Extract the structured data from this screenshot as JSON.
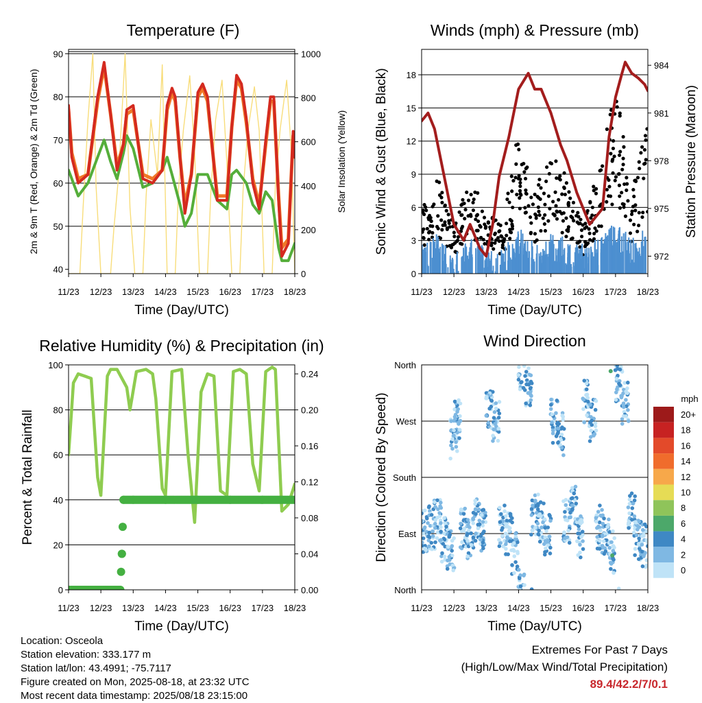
{
  "chart_data": [
    {
      "type": "line",
      "title": "Temperature (F)",
      "xlabel": "Time (Day/UTC)",
      "ylabel": "2m & 9m T (Red, Orange) & 2m Td (Green)",
      "y2label": "Solar Insolation (Yellow)",
      "x_ticks": [
        "11/23",
        "12/23",
        "13/23",
        "14/23",
        "15/23",
        "16/23",
        "17/23",
        "18/23"
      ],
      "xlim": [
        0,
        7
      ],
      "ylim": [
        39,
        91
      ],
      "y_ticks": [
        40,
        50,
        60,
        70,
        80,
        90
      ],
      "y2lim": [
        0,
        1020
      ],
      "y2_ticks": [
        0,
        200,
        400,
        600,
        800,
        1000
      ],
      "grid": true,
      "series": [
        {
          "name": "2m T",
          "color": "#d42a1f",
          "axis": "left",
          "x": [
            0,
            0.1,
            0.3,
            0.6,
            0.9,
            1.1,
            1.3,
            1.5,
            1.7,
            1.8,
            2.0,
            2.3,
            2.6,
            2.9,
            3.05,
            3.2,
            3.3,
            3.45,
            3.6,
            3.8,
            4.0,
            4.15,
            4.3,
            4.6,
            4.9,
            5.05,
            5.2,
            5.35,
            5.5,
            5.7,
            5.9,
            6.1,
            6.25,
            6.35,
            6.5,
            6.6,
            6.8,
            6.95,
            7.0
          ],
          "y": [
            78,
            66,
            60,
            62,
            80,
            88,
            76,
            63,
            69,
            77,
            78,
            61,
            60,
            63,
            78,
            82,
            80,
            66,
            53,
            62,
            81,
            83,
            80,
            56,
            56,
            73,
            85,
            83,
            75,
            60,
            54,
            70,
            80,
            80,
            56,
            43,
            46,
            72,
            66
          ]
        },
        {
          "name": "9m T",
          "color": "#f07828",
          "axis": "left",
          "x": [
            0,
            0.1,
            0.3,
            0.6,
            0.9,
            1.1,
            1.3,
            1.5,
            1.7,
            1.8,
            2.0,
            2.3,
            2.6,
            2.9,
            3.05,
            3.2,
            3.3,
            3.45,
            3.6,
            3.8,
            4.0,
            4.15,
            4.3,
            4.6,
            4.9,
            5.05,
            5.2,
            5.35,
            5.5,
            5.7,
            5.9,
            6.1,
            6.25,
            6.35,
            6.5,
            6.6,
            6.8,
            6.95,
            7.0
          ],
          "y": [
            77,
            67,
            61,
            62,
            79,
            87,
            76,
            64,
            69,
            76,
            77,
            62,
            61,
            63,
            77,
            81,
            79,
            66,
            55,
            62,
            80,
            82,
            79,
            57,
            57,
            73,
            84,
            82,
            74,
            61,
            55,
            69,
            79,
            79,
            57,
            45,
            47,
            71,
            66
          ]
        },
        {
          "name": "2m Td",
          "color": "#55ae3a",
          "axis": "left",
          "x": [
            0,
            0.3,
            0.6,
            0.9,
            1.1,
            1.3,
            1.5,
            1.7,
            1.8,
            2.0,
            2.3,
            2.6,
            2.9,
            3.05,
            3.2,
            3.45,
            3.6,
            3.8,
            4.0,
            4.3,
            4.6,
            4.9,
            5.05,
            5.2,
            5.5,
            5.7,
            5.9,
            6.1,
            6.3,
            6.5,
            6.6,
            6.8,
            7.0
          ],
          "y": [
            63,
            57,
            60,
            66,
            70,
            65,
            61,
            67,
            71,
            68,
            59,
            60,
            63,
            66,
            62,
            55,
            50,
            53,
            62,
            62,
            56,
            54,
            62,
            63,
            60,
            55,
            53,
            58,
            56,
            45,
            42,
            42,
            46
          ]
        },
        {
          "name": "Solar Insolation",
          "color": "#f8dd7a",
          "axis": "right",
          "x": [
            0,
            0.35,
            0.45,
            0.6,
            0.75,
            0.85,
            1.0,
            1.3,
            1.4,
            1.55,
            1.75,
            1.9,
            2.05,
            2.3,
            2.4,
            2.55,
            2.75,
            2.9,
            3.05,
            3.3,
            3.4,
            3.55,
            3.75,
            3.9,
            4.05,
            4.3,
            4.4,
            4.55,
            4.75,
            4.9,
            5.05,
            5.3,
            5.4,
            5.55,
            5.75,
            5.9,
            6.05,
            6.3,
            6.4,
            6.55,
            6.75,
            6.9,
            7.0
          ],
          "y": [
            0,
            0,
            300,
            700,
            1000,
            400,
            0,
            0,
            200,
            450,
            1000,
            300,
            0,
            0,
            350,
            700,
            450,
            950,
            0,
            0,
            380,
            650,
            900,
            550,
            0,
            0,
            360,
            700,
            880,
            500,
            0,
            0,
            380,
            650,
            850,
            650,
            0,
            0,
            400,
            660,
            880,
            540,
            0
          ]
        }
      ]
    },
    {
      "type": "line",
      "title": "Winds (mph) & Pressure (mb)",
      "xlabel": "Time (Day/UTC)",
      "ylabel": "Sonic Wind & Gust (Blue, Black)",
      "y2label": "Station Pressure (Maroon)",
      "x_ticks": [
        "11/23",
        "12/23",
        "13/23",
        "14/23",
        "15/23",
        "16/23",
        "17/23",
        "18/23"
      ],
      "xlim": [
        0,
        7
      ],
      "ylim": [
        0,
        20.3
      ],
      "y_ticks": [
        0,
        3,
        6,
        9,
        12,
        15,
        18
      ],
      "y2lim": [
        970.9,
        985
      ],
      "y2_ticks": [
        972,
        975,
        978,
        981,
        984
      ],
      "grid": true,
      "series": [
        {
          "name": "Sonic Wind",
          "color": "#4c8fd0",
          "axis": "left",
          "x": [
            0,
            0.5,
            1.0,
            1.5,
            2.0,
            2.5,
            3.0,
            3.5,
            4.0,
            4.5,
            5.0,
            5.5,
            6.0,
            6.5,
            7.0
          ],
          "y": [
            1.5,
            2.5,
            0.5,
            2.5,
            1.0,
            1.0,
            3.0,
            1.5,
            2.5,
            2.0,
            1.5,
            2.0,
            3.5,
            2.0,
            3.0
          ]
        },
        {
          "name": "Gust",
          "color": "#000000",
          "axis": "left",
          "x": [
            0,
            0.5,
            1.0,
            1.5,
            2.0,
            2.5,
            3.0,
            3.5,
            4.0,
            4.5,
            5.0,
            5.5,
            6.0,
            6.5,
            7.0
          ],
          "y": [
            4,
            6,
            3,
            6,
            4,
            3,
            9,
            5,
            8,
            6,
            3,
            7,
            12,
            5,
            10
          ]
        },
        {
          "name": "Station Pressure",
          "color": "#a31d1d",
          "axis": "right",
          "x": [
            0,
            0.2,
            0.4,
            0.7,
            1.0,
            1.3,
            1.5,
            1.8,
            2.0,
            2.2,
            2.4,
            2.7,
            3.0,
            3.3,
            3.5,
            3.7,
            3.8,
            4.0,
            4.3,
            4.5,
            4.8,
            5.0,
            5.2,
            5.4,
            5.6,
            5.8,
            6.0,
            6.2,
            6.3,
            6.5,
            6.7,
            6.9,
            7.0
          ],
          "y": [
            980.5,
            981,
            980,
            977,
            974,
            973,
            974,
            972.5,
            972,
            974,
            977,
            979.5,
            982.5,
            983.5,
            982.5,
            982.5,
            982,
            981,
            979,
            978,
            976,
            975,
            974,
            974.5,
            975,
            979.5,
            982,
            983.5,
            984.2,
            983.5,
            983.2,
            982.8,
            982.4
          ]
        }
      ]
    },
    {
      "type": "line",
      "title": "Relative Humidity (%) & Precipitation (in)",
      "xlabel": "Time (Day/UTC)",
      "ylabel": "Percent & Total Rainfall",
      "x_ticks": [
        "11/23",
        "12/23",
        "13/23",
        "14/23",
        "15/23",
        "16/23",
        "17/23",
        "18/23"
      ],
      "xlim": [
        0,
        7
      ],
      "ylim": [
        0,
        100
      ],
      "y_ticks": [
        0,
        20,
        40,
        60,
        80,
        100
      ],
      "y2lim": [
        0,
        0.25
      ],
      "y2_ticks": [
        "0.00",
        "0.04",
        "0.08",
        "0.12",
        "0.16",
        "0.20",
        "0.24"
      ],
      "grid": true,
      "series": [
        {
          "name": "Relative Humidity",
          "color": "#8fcc50",
          "axis": "left",
          "x": [
            0,
            0.15,
            0.3,
            0.5,
            0.7,
            0.9,
            1.0,
            1.2,
            1.3,
            1.5,
            1.8,
            1.9,
            2.1,
            2.4,
            2.6,
            2.7,
            2.9,
            3.0,
            3.2,
            3.5,
            3.7,
            3.9,
            4.1,
            4.3,
            4.5,
            4.7,
            4.9,
            5.1,
            5.3,
            5.5,
            5.7,
            5.9,
            6.1,
            6.3,
            6.4,
            6.6,
            6.8,
            7.0
          ],
          "y": [
            60,
            92,
            96,
            95,
            94,
            50,
            42,
            95,
            98,
            98,
            90,
            80,
            97,
            98,
            96,
            85,
            45,
            42,
            97,
            98,
            60,
            30,
            88,
            96,
            95,
            44,
            42,
            97,
            98,
            96,
            56,
            44,
            97,
            99,
            98,
            35,
            38,
            47
          ]
        },
        {
          "name": "Total Rainfall",
          "color": "#44b041",
          "axis": "right",
          "x": [
            0,
            1.6,
            1.65,
            1.7,
            2.0,
            3.0,
            4.0,
            5.0,
            6.0,
            7.0
          ],
          "y": [
            0,
            0,
            0.04,
            0.1,
            0.1,
            0.1,
            0.1,
            0.1,
            0.1,
            0.1
          ]
        }
      ]
    },
    {
      "type": "scatter",
      "title": "Wind Direction",
      "xlabel": "Time (Day/UTC)",
      "ylabel": "Direction (Colored By Speed)",
      "x_ticks": [
        "11/23",
        "12/23",
        "13/23",
        "14/23",
        "15/23",
        "16/23",
        "17/23",
        "18/23"
      ],
      "xlim": [
        0,
        7
      ],
      "y_ticks": [
        "North",
        "East",
        "South",
        "West",
        "North"
      ],
      "ylim": [
        0,
        360
      ],
      "grid": true,
      "legend": {
        "title": "mph",
        "position": "right",
        "labels": [
          "20+",
          "18",
          "16",
          "14",
          "12",
          "10",
          "8",
          "6",
          "4",
          "2",
          "0"
        ],
        "colors": [
          "#9d1a1a",
          "#c72222",
          "#e34a2a",
          "#f06c2c",
          "#f7a84a",
          "#e6dc55",
          "#8fc45a",
          "#4ca86a",
          "#3f88c4",
          "#7fb8e3",
          "#bfe3f7"
        ]
      },
      "series": [
        {
          "name": "direction",
          "x": [
            0.1,
            0.3,
            0.5,
            0.7,
            0.9,
            1.0,
            1.1,
            1.3,
            1.5,
            1.7,
            1.9,
            2.1,
            2.3,
            2.5,
            2.7,
            2.9,
            3.1,
            3.3,
            3.5,
            3.7,
            3.9,
            4.1,
            4.3,
            4.5,
            4.7,
            4.9,
            5.1,
            5.3,
            5.5,
            5.7,
            5.9,
            6.1,
            6.3,
            6.5,
            6.7,
            6.9
          ],
          "y": [
            95,
            100,
            110,
            80,
            60,
            240,
            270,
            100,
            85,
            110,
            95,
            290,
            270,
            100,
            90,
            60,
            350,
            330,
            120,
            110,
            90,
            270,
            250,
            110,
            140,
            85,
            300,
            270,
            100,
            90,
            60,
            330,
            300,
            120,
            80,
            70
          ]
        }
      ]
    }
  ],
  "info": {
    "location": "Location: Osceola",
    "elevation": "Station elevation: 333.177 m",
    "latlon": "Station lat/lon: 43.4991; -75.7117",
    "created": "Figure created on Mon, 2025-08-18, at 23:32 UTC",
    "timestamp": "Most recent data timestamp: 2025/08/18 23:15:00"
  },
  "extremes": {
    "line1": "Extremes For Past 7 Days",
    "line2": "(High/Low/Max Wind/Total Precipitation)",
    "values": "89.4/42.2/7/0.1",
    "color": "#c8282d"
  }
}
